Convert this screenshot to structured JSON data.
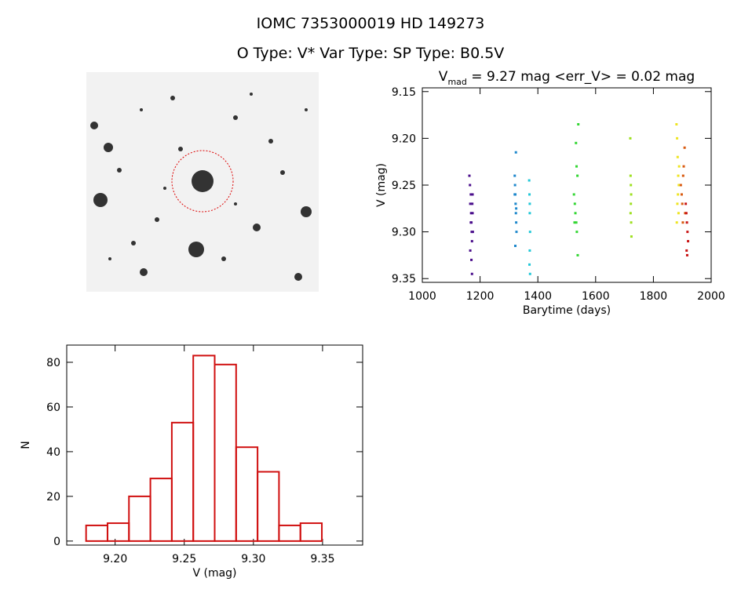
{
  "header": {
    "title": "IOMC 7353000019    HD 149273",
    "subtitle": "O Type: V*  Var Type:    SP Type: B0.5V"
  },
  "chart_data": [
    {
      "type": "scatter",
      "title": "V",
      "title_subscript": "mad",
      "title_rest": " = 9.27 mag <err_V> = 0.02 mag",
      "xlabel": "Barytime (days)",
      "ylabel": "V (mag)",
      "xlim": [
        1000,
        2000
      ],
      "xticks": [
        1000,
        1200,
        1400,
        1600,
        1800,
        2000
      ],
      "ylim": [
        9.354,
        9.146
      ],
      "yticks": [
        {
          "value": 9.15,
          "label": "9.15"
        },
        {
          "value": 9.2,
          "label": "9.20"
        },
        {
          "value": 9.25,
          "label": "9.25"
        },
        {
          "value": 9.3,
          "label": "9.30"
        },
        {
          "value": 9.35,
          "label": "9.35"
        }
      ],
      "series": [
        {
          "color": "#4b0f8c",
          "x": [
            1163,
            1165,
            1166,
            1168,
            1169,
            1170,
            1171,
            1172,
            1173,
            1174,
            1175,
            1166,
            1170,
            1172,
            1168,
            1174
          ],
          "values": [
            9.24,
            9.25,
            9.27,
            9.26,
            9.28,
            9.29,
            9.3,
            9.31,
            9.27,
            9.28,
            9.3,
            9.32,
            9.33,
            9.345,
            9.29,
            9.26
          ]
        },
        {
          "color": "#1e88cc",
          "x": [
            1320,
            1321,
            1322,
            1323,
            1324,
            1325,
            1326,
            1322,
            1324,
            1320,
            1325
          ],
          "values": [
            9.24,
            9.25,
            9.26,
            9.27,
            9.28,
            9.29,
            9.3,
            9.315,
            9.215,
            9.26,
            9.275
          ]
        },
        {
          "color": "#22c8d8",
          "x": [
            1370,
            1371,
            1372,
            1373,
            1372,
            1371,
            1373,
            1372
          ],
          "values": [
            9.245,
            9.26,
            9.27,
            9.3,
            9.32,
            9.335,
            9.345,
            9.28
          ]
        },
        {
          "color": "#33d633",
          "x": [
            1525,
            1528,
            1530,
            1533,
            1535,
            1537,
            1540,
            1532,
            1538,
            1527,
            1534
          ],
          "values": [
            9.26,
            9.27,
            9.28,
            9.29,
            9.3,
            9.24,
            9.185,
            9.205,
            9.325,
            9.29,
            9.23
          ]
        },
        {
          "color": "#9ee020",
          "x": [
            1720,
            1721,
            1722,
            1723,
            1722,
            1721,
            1723,
            1724
          ],
          "values": [
            9.2,
            9.24,
            9.25,
            9.26,
            9.27,
            9.28,
            9.29,
            9.305
          ]
        },
        {
          "color": "#eee422",
          "x": [
            1880,
            1882,
            1884,
            1886,
            1888,
            1885,
            1883,
            1887,
            1881,
            1889
          ],
          "values": [
            9.185,
            9.2,
            9.22,
            9.24,
            9.25,
            9.26,
            9.27,
            9.28,
            9.29,
            9.23
          ]
        },
        {
          "color": "#d85a10",
          "x": [
            1895,
            1898,
            1900,
            1903,
            1905,
            1908,
            1910,
            1902
          ],
          "values": [
            9.25,
            9.26,
            9.27,
            9.24,
            9.23,
            9.21,
            9.28,
            9.29
          ]
        },
        {
          "color": "#c81414",
          "x": [
            1912,
            1914,
            1916,
            1918,
            1920,
            1915,
            1917
          ],
          "values": [
            9.27,
            9.28,
            9.29,
            9.3,
            9.31,
            9.32,
            9.325
          ]
        }
      ]
    },
    {
      "type": "histogram",
      "xlabel": "V (mag)",
      "ylabel": "N",
      "color": "#d01010",
      "bins": [
        9.179,
        9.1945,
        9.21,
        9.2255,
        9.241,
        9.2565,
        9.272,
        9.2875,
        9.303,
        9.3185,
        9.334,
        9.3495
      ],
      "values": [
        7,
        8,
        20,
        28,
        53,
        83,
        79,
        42,
        31,
        7,
        8
      ],
      "xlim": [
        9.165,
        9.379
      ],
      "xticks": [
        {
          "value": 9.2,
          "label": "9.20"
        },
        {
          "value": 9.25,
          "label": "9.25"
        },
        {
          "value": 9.3,
          "label": "9.30"
        },
        {
          "value": 9.35,
          "label": "9.35"
        }
      ],
      "ylim": [
        -1.8,
        87.7
      ],
      "yticks": [
        0,
        20,
        40,
        60,
        80
      ]
    }
  ]
}
